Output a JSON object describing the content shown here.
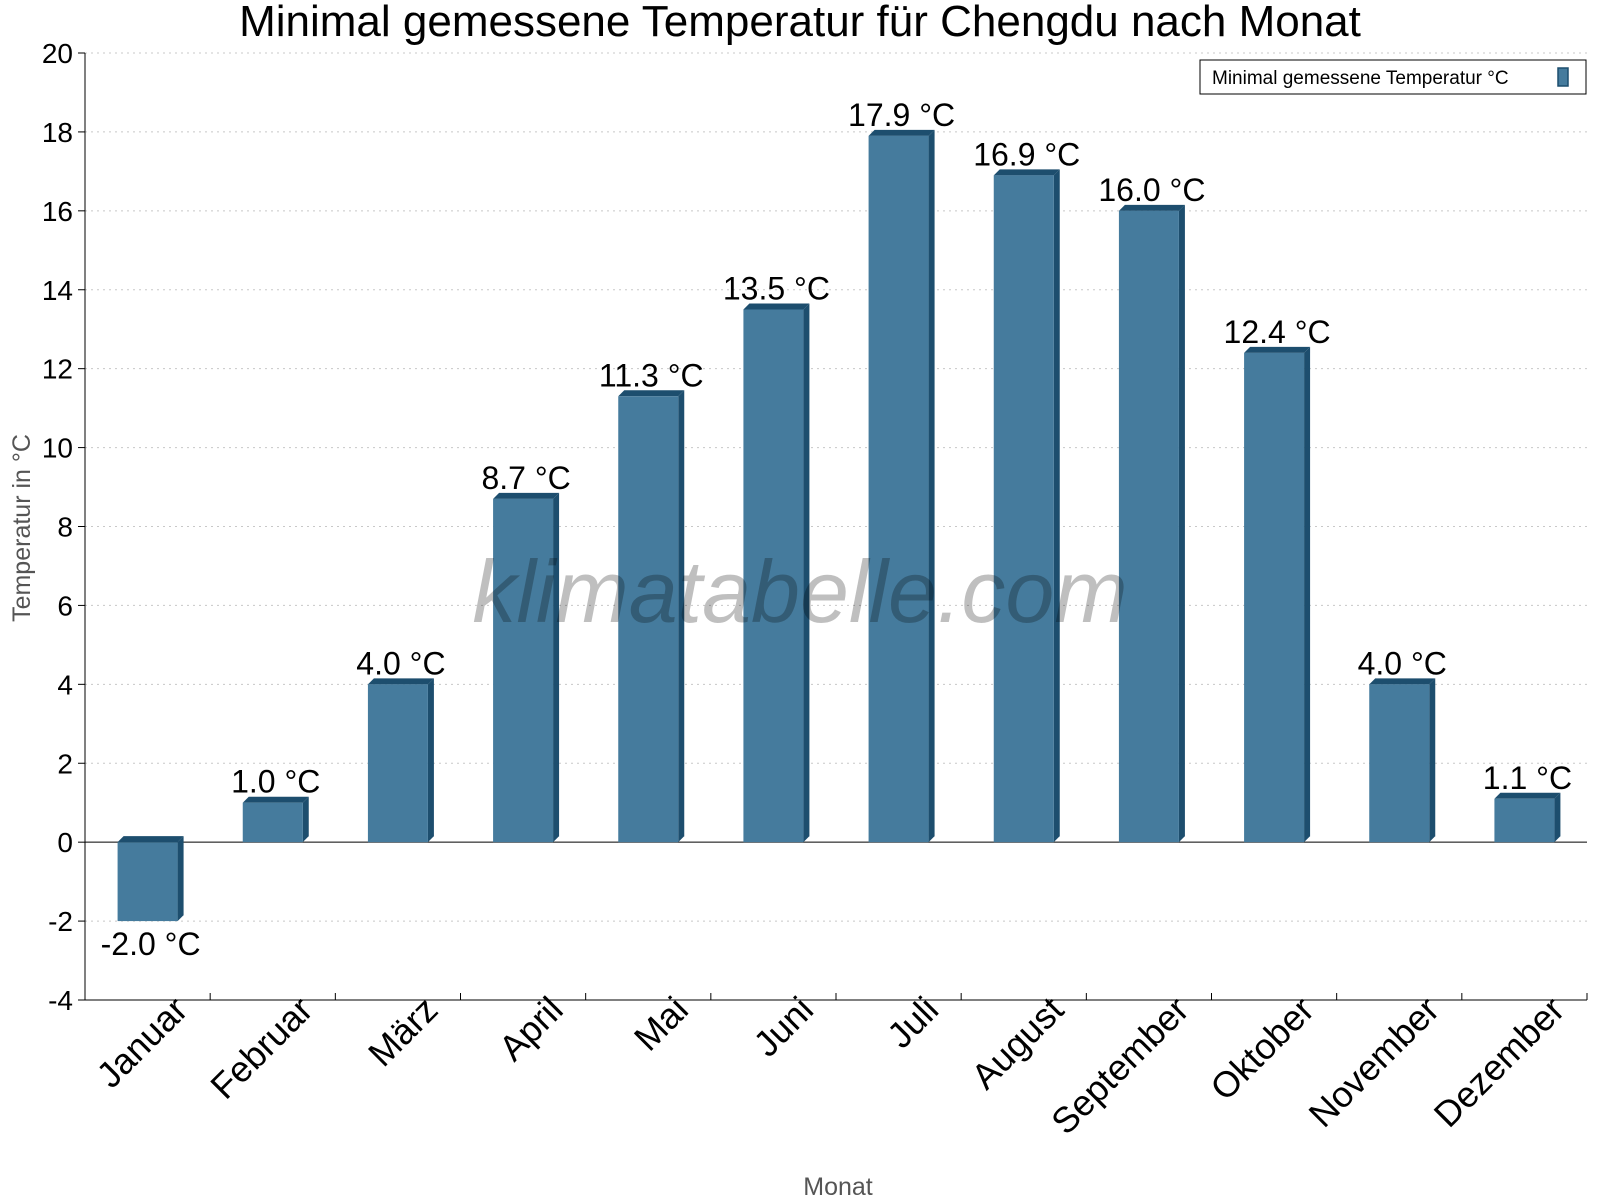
{
  "chart_data": {
    "type": "bar",
    "title": "Minimal gemessene Temperatur für Chengdu nach Monat",
    "xlabel": "Monat",
    "ylabel": "Temperatur in °C",
    "ylim": [
      -4,
      20
    ],
    "yticks": [
      -4,
      -2,
      0,
      2,
      4,
      6,
      8,
      10,
      12,
      14,
      16,
      18,
      20
    ],
    "grid": true,
    "legend_position": "top-right",
    "categories": [
      "Januar",
      "Februar",
      "März",
      "April",
      "Mai",
      "Juni",
      "Juli",
      "August",
      "September",
      "Oktober",
      "November",
      "Dezember"
    ],
    "series": [
      {
        "name": "Minimal gemessene Temperatur °C",
        "values": [
          -2.0,
          1.0,
          4.0,
          8.7,
          11.3,
          13.5,
          17.9,
          16.9,
          16.0,
          12.4,
          4.0,
          1.1
        ],
        "labels": [
          "-2.0 °C",
          "1.0 °C",
          "4.0 °C",
          "8.7 °C",
          "11.3 °C",
          "13.5 °C",
          "17.9 °C",
          "16.9 °C",
          "16.0 °C",
          "12.4 °C",
          "4.0 °C",
          "1.1 °C"
        ]
      }
    ],
    "watermark": "klimatabelle.com",
    "colors": {
      "bar_front": "#457b9d",
      "bar_side": "#1d4e6e",
      "bar_top": "#1d4e6e",
      "axis": "#000000"
    }
  }
}
